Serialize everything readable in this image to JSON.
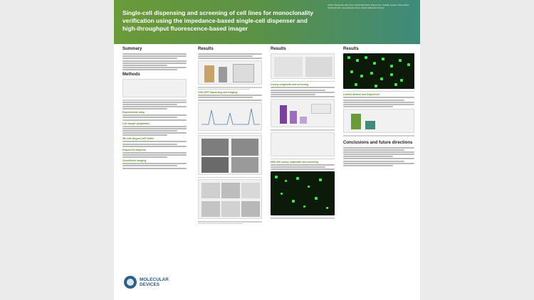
{
  "header": {
    "title": "Single-cell dispensing and screening of cell lines for monoclonality verification using the impedance-based single-cell dispenser and high-throughput fluorescence-based imager",
    "authors": "Thitinun Sattanurak, Dhar Huan, Andrea Mannhardt, Shauna Horn, Nathalie Jouanne, Peter Kramer, Oksana Sirenko, Lana Vasbinder, Deryn Haskins (Molecular Devices)"
  },
  "sections": {
    "summary": "Summary",
    "methods": "Methods",
    "results_a": "Results",
    "results_b": "Results",
    "results_c": "Results",
    "conclusions": "Conclusions and future directions"
  },
  "subsections": {
    "experimental_setup": "Experimental setup",
    "cell_sample_prep": "Cell sample preparation",
    "wb_dispense": "Wb with DispenCell® buffer",
    "dispencell": "DispenCell dispense",
    "clonepix": "CloneSelect Imaging",
    "cho_dispensing": "CHO-GFP dispensing and imaging",
    "colony_outgrowth": "Colony outgrowth and screening",
    "hek_colony": "HEK-293 colony outgrowth and screening",
    "limited_dilution": "Limited dilution and DispenCell"
  },
  "logo": {
    "name": "MOLECULAR DEVICES"
  },
  "colors": {
    "header_green": "#6a9a3a",
    "header_teal": "#3f8a7a",
    "subheading_green": "#5b8f2f",
    "imager_background": "#0c1a0a",
    "colony_green": "#3ee83e",
    "logo_blue": "#2f5f86"
  }
}
